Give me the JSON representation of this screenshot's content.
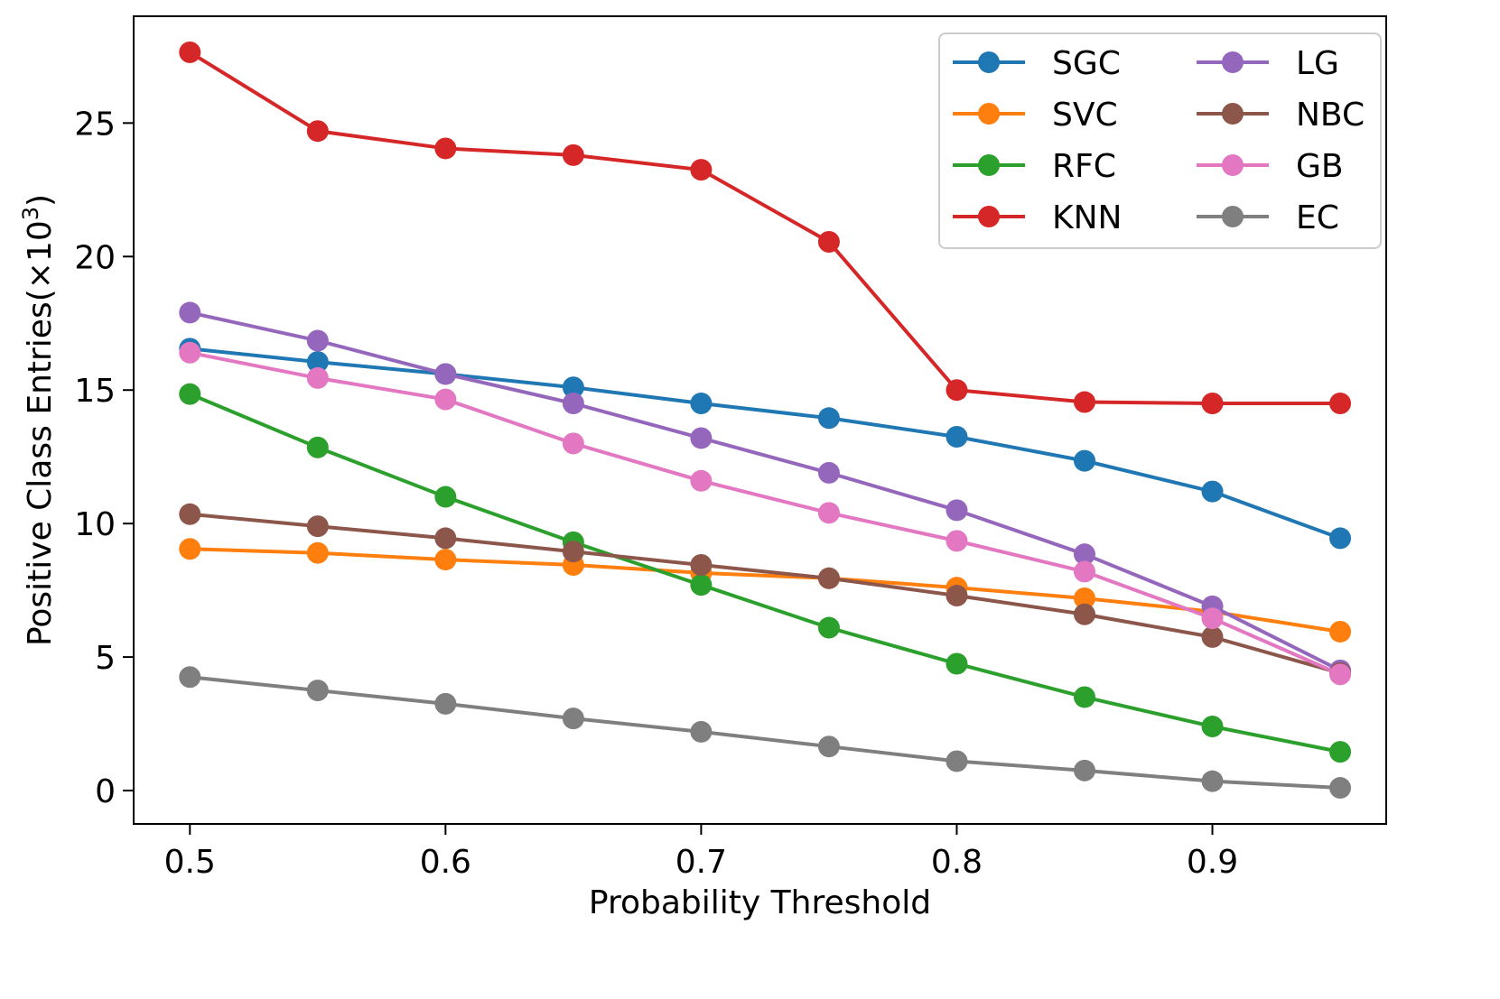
{
  "chart_data": {
    "type": "line",
    "title": "",
    "xlabel": "Probability Threshold",
    "ylabel_main": "Positive Class Entries(×10",
    "ylabel_exp": "3",
    "ylabel_close": ")",
    "xlim": [
      0.478,
      0.968
    ],
    "ylim": [
      -1.25,
      29.0
    ],
    "xticks": [
      0.5,
      0.6,
      0.7,
      0.8,
      0.9
    ],
    "xtick_labels": [
      "0.5",
      "0.6",
      "0.7",
      "0.8",
      "0.9"
    ],
    "yticks": [
      0,
      5,
      10,
      15,
      20,
      25
    ],
    "ytick_labels": [
      "0",
      "5",
      "10",
      "15",
      "20",
      "25"
    ],
    "x": [
      0.5,
      0.55,
      0.6,
      0.65,
      0.7,
      0.75,
      0.8,
      0.85,
      0.9,
      0.95
    ],
    "grid": false,
    "legend_position": "top-right",
    "legend_columns": 2,
    "series": [
      {
        "name": "SGC",
        "color": "#1f77b4",
        "values": [
          16.55,
          16.05,
          15.6,
          15.1,
          14.5,
          13.95,
          13.25,
          12.35,
          11.2,
          9.45
        ]
      },
      {
        "name": "SVC",
        "color": "#ff7f0e",
        "values": [
          9.05,
          8.9,
          8.65,
          8.45,
          8.15,
          7.95,
          7.6,
          7.2,
          6.7,
          5.95
        ]
      },
      {
        "name": "RFC",
        "color": "#2ca02c",
        "values": [
          14.85,
          12.85,
          11.0,
          9.3,
          7.7,
          6.1,
          4.75,
          3.5,
          2.4,
          1.45
        ]
      },
      {
        "name": "KNN",
        "color": "#d62728",
        "values": [
          27.65,
          24.7,
          24.05,
          23.8,
          23.25,
          20.55,
          15.0,
          14.55,
          14.5,
          14.5
        ]
      },
      {
        "name": "LG",
        "color": "#9467bd",
        "values": [
          17.9,
          16.85,
          15.6,
          14.5,
          13.2,
          11.9,
          10.5,
          8.85,
          6.9,
          4.5
        ]
      },
      {
        "name": "NBC",
        "color": "#8c564b",
        "values": [
          10.35,
          9.9,
          9.45,
          8.95,
          8.45,
          7.95,
          7.3,
          6.6,
          5.75,
          4.4
        ]
      },
      {
        "name": "GB",
        "color": "#e377c2",
        "values": [
          16.4,
          15.45,
          14.65,
          13.0,
          11.6,
          10.4,
          9.35,
          8.2,
          6.45,
          4.35
        ]
      },
      {
        "name": "EC",
        "color": "#7f7f7f",
        "values": [
          4.25,
          3.75,
          3.25,
          2.7,
          2.2,
          1.65,
          1.1,
          0.75,
          0.35,
          0.1
        ]
      }
    ]
  }
}
